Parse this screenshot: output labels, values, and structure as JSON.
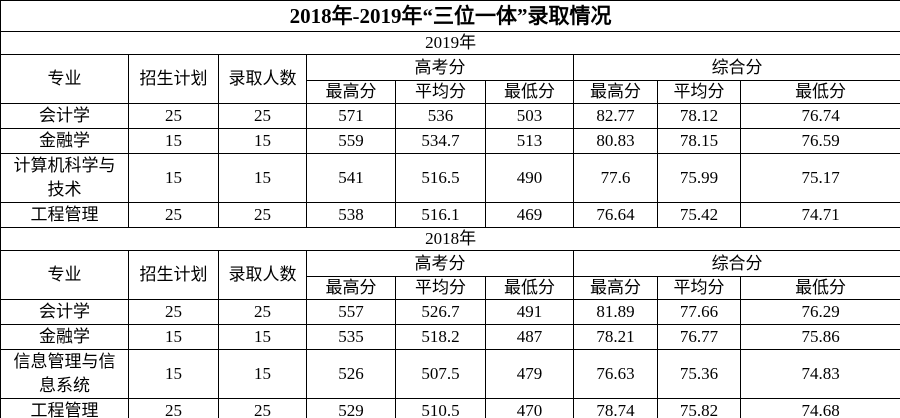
{
  "title": "2018年-2019年“三位一体”录取情况",
  "sections": [
    {
      "year": "2019年",
      "header": {
        "major": "专业",
        "plan": "招生计划",
        "admitted": "录取人数",
        "gaokao": "高考分",
        "gaokao_cols": [
          "最高分",
          "平均分",
          "最低分"
        ],
        "composite": "综合分",
        "composite_cols": [
          "最高分",
          "平均分",
          "最低分"
        ]
      },
      "rows": [
        [
          "会计学",
          25,
          25,
          571,
          536,
          503,
          82.77,
          78.12,
          76.74
        ],
        [
          "金融学",
          15,
          15,
          559,
          534.7,
          513,
          80.83,
          78.15,
          76.59
        ],
        [
          "计算机科学与技术",
          15,
          15,
          541,
          516.5,
          490,
          77.6,
          75.99,
          75.17
        ],
        [
          "工程管理",
          25,
          25,
          538,
          516.1,
          469,
          76.64,
          75.42,
          74.71
        ]
      ]
    },
    {
      "year": "2018年",
      "header": {
        "major": "专业",
        "plan": "招生计划",
        "admitted": "录取人数",
        "gaokao": "高考分",
        "gaokao_cols": [
          "最高分",
          "平均分",
          "最低分"
        ],
        "composite": "综合分",
        "composite_cols": [
          "最高分",
          "平均分",
          "最低分"
        ]
      },
      "rows": [
        [
          "会计学",
          25,
          25,
          557,
          526.7,
          491,
          81.89,
          77.66,
          76.29
        ],
        [
          "金融学",
          15,
          15,
          535,
          518.2,
          487,
          78.21,
          76.77,
          75.86
        ],
        [
          "信息管理与信息系统",
          15,
          15,
          526,
          507.5,
          479,
          76.63,
          75.36,
          74.83
        ],
        [
          "工程管理",
          25,
          25,
          529,
          510.5,
          470,
          78.74,
          75.82,
          74.68
        ]
      ]
    }
  ]
}
